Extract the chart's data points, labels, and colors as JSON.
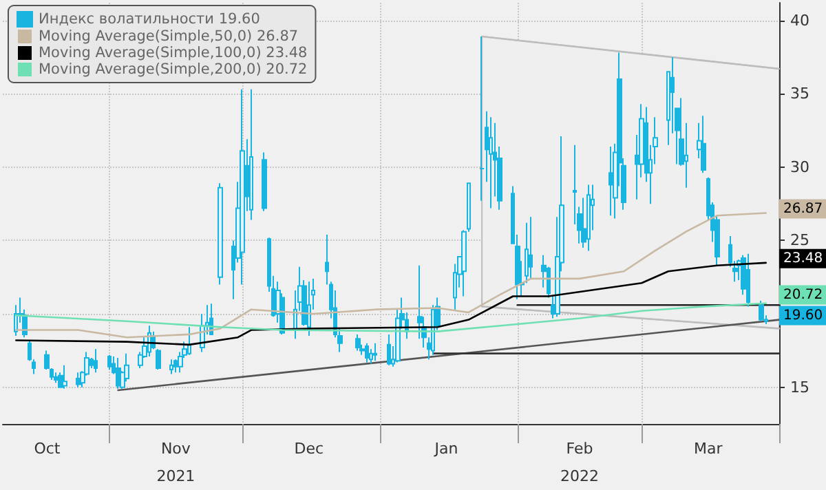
{
  "chart_data": {
    "type": "candlestick",
    "xlim": [
      "2021-10-08",
      "2022-04-01"
    ],
    "xticks": [
      {
        "value": "2021-10-18",
        "label": "Oct"
      },
      {
        "value": "2021-11-01",
        "label": null
      },
      {
        "value": "2021-11-16",
        "label": "Nov\n2021"
      },
      {
        "value": "2021-12-01",
        "label": null
      },
      {
        "value": "2021-12-16",
        "label": "Dec"
      },
      {
        "value": "2022-01-01",
        "label": null
      },
      {
        "value": "2022-01-16",
        "label": "Jan"
      },
      {
        "value": "2022-02-01",
        "label": null
      },
      {
        "value": "2022-02-15",
        "label": "Feb\n2022"
      },
      {
        "value": "2022-03-01",
        "label": null
      },
      {
        "value": "2022-03-16",
        "label": "Mar"
      },
      {
        "value": "2022-04-01",
        "label": null
      }
    ],
    "ylim": [
      12.5,
      41.2
    ],
    "yticks": [
      15,
      {
        "value": 20,
        "label": null
      },
      25,
      30,
      35,
      40
    ],
    "grid": true,
    "legend": "top left",
    "series": [
      {
        "name": "Индекс волатильности 19.60",
        "color": "#19b4e0",
        "x": [
          "2021-10-11",
          "2021-10-12",
          "2021-10-13",
          "2021-10-14",
          "2021-10-15",
          "2021-10-18",
          "2021-10-19",
          "2021-10-20",
          "2021-10-21",
          "2021-10-22",
          "2021-10-25",
          "2021-10-26",
          "2021-10-27",
          "2021-10-28",
          "2021-10-29",
          "2021-11-01",
          "2021-11-02",
          "2021-11-03",
          "2021-11-04",
          "2021-11-05",
          "2021-11-08",
          "2021-11-09",
          "2021-11-10",
          "2021-11-11",
          "2021-11-12",
          "2021-11-15",
          "2021-11-16",
          "2021-11-17",
          "2021-11-18",
          "2021-11-19",
          "2021-11-22",
          "2021-11-23",
          "2021-11-24",
          "2021-11-26",
          "2021-11-29",
          "2021-11-30",
          "2021-12-01",
          "2021-12-02",
          "2021-12-03",
          "2021-12-06",
          "2021-12-07",
          "2021-12-08",
          "2021-12-09",
          "2021-12-10",
          "2021-12-13",
          "2021-12-14",
          "2021-12-15",
          "2021-12-16",
          "2021-12-17",
          "2021-12-20",
          "2021-12-21",
          "2021-12-22",
          "2021-12-23",
          "2021-12-27",
          "2021-12-28",
          "2021-12-29",
          "2021-12-30",
          "2021-12-31",
          "2022-01-03",
          "2022-01-04",
          "2022-01-05",
          "2022-01-06",
          "2022-01-07",
          "2022-01-10",
          "2022-01-11",
          "2022-01-12",
          "2022-01-13",
          "2022-01-14",
          "2022-01-18",
          "2022-01-19",
          "2022-01-20",
          "2022-01-21",
          "2022-01-24",
          "2022-01-25",
          "2022-01-26",
          "2022-01-27",
          "2022-01-28",
          "2022-01-31",
          "2022-02-01",
          "2022-02-02",
          "2022-02-03",
          "2022-02-04",
          "2022-02-07",
          "2022-02-08",
          "2022-02-09",
          "2022-02-10",
          "2022-02-11",
          "2022-02-14",
          "2022-02-15",
          "2022-02-16",
          "2022-02-17",
          "2022-02-18",
          "2022-02-22",
          "2022-02-23",
          "2022-02-24",
          "2022-02-25",
          "2022-02-28",
          "2022-03-01",
          "2022-03-02",
          "2022-03-03",
          "2022-03-04",
          "2022-03-07",
          "2022-03-08",
          "2022-03-09",
          "2022-03-10",
          "2022-03-11",
          "2022-03-14",
          "2022-03-15",
          "2022-03-16",
          "2022-03-17",
          "2022-03-18",
          "2022-03-21",
          "2022-03-22",
          "2022-03-23",
          "2022-03-24",
          "2022-03-25",
          "2022-03-28",
          "2022-03-29"
        ],
        "ohlc": [
          [
            18.8,
            20.6,
            18.5,
            20.0
          ],
          [
            20.0,
            21.1,
            19.4,
            19.9
          ],
          [
            19.9,
            20.3,
            18.4,
            18.6
          ],
          [
            18.0,
            18.2,
            16.8,
            16.9
          ],
          [
            16.7,
            16.9,
            15.9,
            16.3
          ],
          [
            17.2,
            17.5,
            16.2,
            16.3
          ],
          [
            16.2,
            16.3,
            15.5,
            15.7
          ],
          [
            15.7,
            16.0,
            15.3,
            15.5
          ],
          [
            15.8,
            16.0,
            15.0,
            15.0
          ],
          [
            15.1,
            16.5,
            14.9,
            15.4
          ],
          [
            15.6,
            16.0,
            15.0,
            15.2
          ],
          [
            15.3,
            16.1,
            15.0,
            16.0
          ],
          [
            15.9,
            17.4,
            15.8,
            17.0
          ],
          [
            16.9,
            17.0,
            16.3,
            16.5
          ],
          [
            16.8,
            17.6,
            16.0,
            16.3
          ],
          [
            17.1,
            17.2,
            16.2,
            16.4
          ],
          [
            16.6,
            17.1,
            15.9,
            16.0
          ],
          [
            16.3,
            17.0,
            14.9,
            15.1
          ],
          [
            15.0,
            16.1,
            14.9,
            16.0
          ],
          [
            15.6,
            17.3,
            15.4,
            16.5
          ],
          [
            16.5,
            17.4,
            16.3,
            17.2
          ],
          [
            17.1,
            18.5,
            17.0,
            17.8
          ],
          [
            17.4,
            19.2,
            17.1,
            18.7
          ],
          [
            18.5,
            18.8,
            17.6,
            17.7
          ],
          [
            17.5,
            17.6,
            16.2,
            16.3
          ],
          [
            16.2,
            16.9,
            15.9,
            16.5
          ],
          [
            16.8,
            16.9,
            16.0,
            16.4
          ],
          [
            16.4,
            17.4,
            16.0,
            17.1
          ],
          [
            17.2,
            18.1,
            17.0,
            17.6
          ],
          [
            17.3,
            19.1,
            17.2,
            17.9
          ],
          [
            17.7,
            20.0,
            17.4,
            19.2
          ],
          [
            19.2,
            20.6,
            18.6,
            19.4
          ],
          [
            19.7,
            20.7,
            18.6,
            18.6
          ],
          [
            22.5,
            28.9,
            22.0,
            28.6
          ],
          [
            24.6,
            25.0,
            21.0,
            23.0
          ],
          [
            23.8,
            29.0,
            23.5,
            27.2
          ],
          [
            24.2,
            35.3,
            22.0,
            31.1
          ],
          [
            30.1,
            31.9,
            27.0,
            28.0
          ],
          [
            27.1,
            35.3,
            26.4,
            30.7
          ],
          [
            30.5,
            31.0,
            27.0,
            27.2
          ],
          [
            25.1,
            25.2,
            21.5,
            21.9
          ],
          [
            21.7,
            22.6,
            19.8,
            19.9
          ],
          [
            20.0,
            22.2,
            19.4,
            21.6
          ],
          [
            21.1,
            21.4,
            18.6,
            18.7
          ],
          [
            18.9,
            21.6,
            18.3,
            20.3
          ],
          [
            20.8,
            23.2,
            20.2,
            21.9
          ],
          [
            21.9,
            22.3,
            19.2,
            19.3
          ],
          [
            19.1,
            22.2,
            18.5,
            20.6
          ],
          [
            21.3,
            22.4,
            20.3,
            21.6
          ],
          [
            23.5,
            25.4,
            22.0,
            22.9
          ],
          [
            22.0,
            22.2,
            19.7,
            20.3
          ],
          [
            20.4,
            21.6,
            18.4,
            18.6
          ],
          [
            18.5,
            19.0,
            17.4,
            18.0
          ],
          [
            18.3,
            18.6,
            17.5,
            17.7
          ],
          [
            17.6,
            17.9,
            17.2,
            17.5
          ],
          [
            17.8,
            18.0,
            16.7,
            17.0
          ],
          [
            16.9,
            17.6,
            16.6,
            17.3
          ],
          [
            17.3,
            18.0,
            16.8,
            17.2
          ],
          [
            17.9,
            18.6,
            16.5,
            16.6
          ],
          [
            16.6,
            17.8,
            16.4,
            16.9
          ],
          [
            16.8,
            20.3,
            16.7,
            19.7
          ],
          [
            20.0,
            21.1,
            19.0,
            19.6
          ],
          [
            19.6,
            20.1,
            18.3,
            18.8
          ],
          [
            19.8,
            23.3,
            18.3,
            19.4
          ],
          [
            19.1,
            19.8,
            17.7,
            18.4
          ],
          [
            18.0,
            18.4,
            16.9,
            17.6
          ],
          [
            17.5,
            20.6,
            17.2,
            20.3
          ],
          [
            20.5,
            21.1,
            18.9,
            19.2
          ],
          [
            21.1,
            23.4,
            20.3,
            22.8
          ],
          [
            22.7,
            23.9,
            21.8,
            23.9
          ],
          [
            22.9,
            25.7,
            21.2,
            25.6
          ],
          [
            25.8,
            28.9,
            25.6,
            28.9
          ],
          [
            29.9,
            38.9,
            27.7,
            29.9
          ],
          [
            32.7,
            33.8,
            29.0,
            31.2
          ],
          [
            30.9,
            33.4,
            27.2,
            32.0
          ],
          [
            31.0,
            33.0,
            28.0,
            30.5
          ],
          [
            30.6,
            31.4,
            27.1,
            27.7
          ],
          [
            28.2,
            28.7,
            24.8,
            24.8
          ],
          [
            24.6,
            25.4,
            21.0,
            22.0
          ],
          [
            22.0,
            23.6,
            21.2,
            22.1
          ],
          [
            22.6,
            26.2,
            22.1,
            24.4
          ],
          [
            24.0,
            26.6,
            22.4,
            23.2
          ],
          [
            23.3,
            24.0,
            21.8,
            22.9
          ],
          [
            23.1,
            23.2,
            21.1,
            21.4
          ],
          [
            20.6,
            21.2,
            19.7,
            20.0
          ],
          [
            20.0,
            26.6,
            19.8,
            23.9
          ],
          [
            23.5,
            32.1,
            22.9,
            27.4
          ],
          [
            28.4,
            31.5,
            26.1,
            28.3
          ],
          [
            26.8,
            27.3,
            24.8,
            25.7
          ],
          [
            25.8,
            27.9,
            24.5,
            24.9
          ],
          [
            25.1,
            28.8,
            24.3,
            28.1
          ],
          [
            27.4,
            28.8,
            25.7,
            27.8
          ],
          [
            29.6,
            31.4,
            26.7,
            28.8
          ],
          [
            27.9,
            31.6,
            26.5,
            31.0
          ],
          [
            36.0,
            37.8,
            28.7,
            30.3
          ],
          [
            30.1,
            30.6,
            27.1,
            27.6
          ],
          [
            30.8,
            32.2,
            27.8,
            30.2
          ],
          [
            30.2,
            34.3,
            29.3,
            33.3
          ],
          [
            33.0,
            34.1,
            29.0,
            29.6
          ],
          [
            29.6,
            31.5,
            27.5,
            30.5
          ],
          [
            31.4,
            33.4,
            30.2,
            32.0
          ],
          [
            33.2,
            36.5,
            31.5,
            36.5
          ],
          [
            36.1,
            37.5,
            32.3,
            35.1
          ],
          [
            34.0,
            34.0,
            30.2,
            32.5
          ],
          [
            31.9,
            34.7,
            30.1,
            30.2
          ],
          [
            30.4,
            33.0,
            28.6,
            30.8
          ],
          [
            31.2,
            33.0,
            30.6,
            31.8
          ],
          [
            31.6,
            33.5,
            29.6,
            29.8
          ],
          [
            29.2,
            29.3,
            26.4,
            26.7
          ],
          [
            27.4,
            27.6,
            24.9,
            25.7
          ],
          [
            26.4,
            26.7,
            23.3,
            23.9
          ],
          [
            24.7,
            25.3,
            23.2,
            23.5
          ],
          [
            23.1,
            23.6,
            22.2,
            22.9
          ],
          [
            23.3,
            23.7,
            22.3,
            23.6
          ],
          [
            23.8,
            24.0,
            21.3,
            21.7
          ],
          [
            23.0,
            24.1,
            20.5,
            20.8
          ],
          [
            20.6,
            20.9,
            19.5,
            19.6
          ],
          [
            19.5,
            19.9,
            19.3,
            19.6
          ]
        ]
      },
      {
        "type": "line",
        "name": "Moving Average(Simple,50,0) 26.87",
        "color": "#c9b9a3",
        "marker": "none",
        "line_style": "solid",
        "value_labels": [
          null,
          null,
          null,
          null,
          null,
          null,
          null,
          null,
          null,
          null,
          null,
          null,
          null,
          null,
          null,
          null,
          null,
          "26.87"
        ],
        "x": [
          "2021-10-11",
          "2021-10-25",
          "2021-11-05",
          "2021-11-19",
          "2021-11-26",
          "2021-12-03",
          "2021-12-17",
          "2021-12-31",
          "2022-01-14",
          "2022-01-21",
          "2022-01-28",
          "2022-02-04",
          "2022-02-15",
          "2022-02-25",
          "2022-03-04",
          "2022-03-11",
          "2022-03-18",
          "2022-03-29"
        ],
        "values": [
          18.9,
          18.9,
          18.4,
          18.6,
          19.0,
          20.3,
          20.0,
          20.3,
          20.4,
          20.1,
          21.3,
          22.4,
          22.4,
          22.9,
          24.3,
          25.6,
          26.7,
          26.87
        ]
      },
      {
        "type": "line",
        "name": "Moving Average(Simple,100,0) 23.48",
        "color": "#000000",
        "marker": "none",
        "line_style": "solid",
        "value_labels": [
          null,
          null,
          null,
          null,
          null,
          null,
          null,
          null,
          null,
          null,
          null,
          null,
          null,
          "23.48"
        ],
        "x": [
          "2021-10-11",
          "2021-11-05",
          "2021-11-19",
          "2021-11-30",
          "2021-12-03",
          "2021-12-17",
          "2022-01-14",
          "2022-01-21",
          "2022-01-31",
          "2022-02-08",
          "2022-03-01",
          "2022-03-07",
          "2022-03-18",
          "2022-03-29"
        ],
        "values": [
          18.2,
          18.1,
          17.9,
          18.4,
          18.9,
          19.0,
          19.1,
          19.6,
          21.2,
          21.2,
          22.1,
          22.9,
          23.3,
          23.48
        ]
      },
      {
        "type": "line",
        "name": "Moving Average(Simple,200,0) 20.72",
        "color": "#6fe0b4",
        "marker": "none",
        "line_style": "solid",
        "value_labels": [
          null,
          null,
          null,
          null,
          null,
          null,
          null,
          null,
          null,
          "20.72"
        ],
        "x": [
          "2021-10-11",
          "2021-11-05",
          "2021-11-26",
          "2021-12-10",
          "2022-01-14",
          "2022-02-01",
          "2022-02-15",
          "2022-03-01",
          "2022-03-15",
          "2022-03-29"
        ],
        "values": [
          19.9,
          19.5,
          19.1,
          18.9,
          18.8,
          19.3,
          19.7,
          20.2,
          20.5,
          20.72
        ]
      },
      {
        "type": "line",
        "color": "#bdbdbd",
        "marker": "none",
        "line_style": "solid",
        "x": [
          "2022-01-24",
          "2022-04-01"
        ],
        "values": [
          38.9,
          36.7
        ],
        "upper": [
          38.9,
          36.7
        ],
        "lower": [
          20.5,
          19.0
        ]
      },
      {
        "type": "line",
        "color": "#bdbdbd",
        "marker": "none",
        "line_style": "solid",
        "x": [
          "2022-01-24",
          "2022-04-01"
        ],
        "values": [
          20.5,
          19.0
        ]
      },
      {
        "type": "line",
        "color": "#555555",
        "marker": "none",
        "line_style": "solid",
        "x": [
          "2021-11-03",
          "2022-04-01"
        ],
        "values": [
          14.8,
          19.6
        ]
      },
      {
        "type": "line",
        "color": "#333333",
        "marker": "none",
        "line_style": "solid",
        "x": [
          "2022-01-13",
          "2022-04-01"
        ],
        "values": [
          17.3,
          17.3
        ]
      },
      {
        "type": "line",
        "color": "#222222",
        "marker": "none",
        "line_style": "solid",
        "x": [
          "2022-02-01",
          "2022-04-01"
        ],
        "values": [
          20.6,
          20.6
        ]
      }
    ],
    "annotations": [
      {
        "text": "19.60",
        "x": "2022-03-29",
        "y": 19.6
      }
    ]
  }
}
